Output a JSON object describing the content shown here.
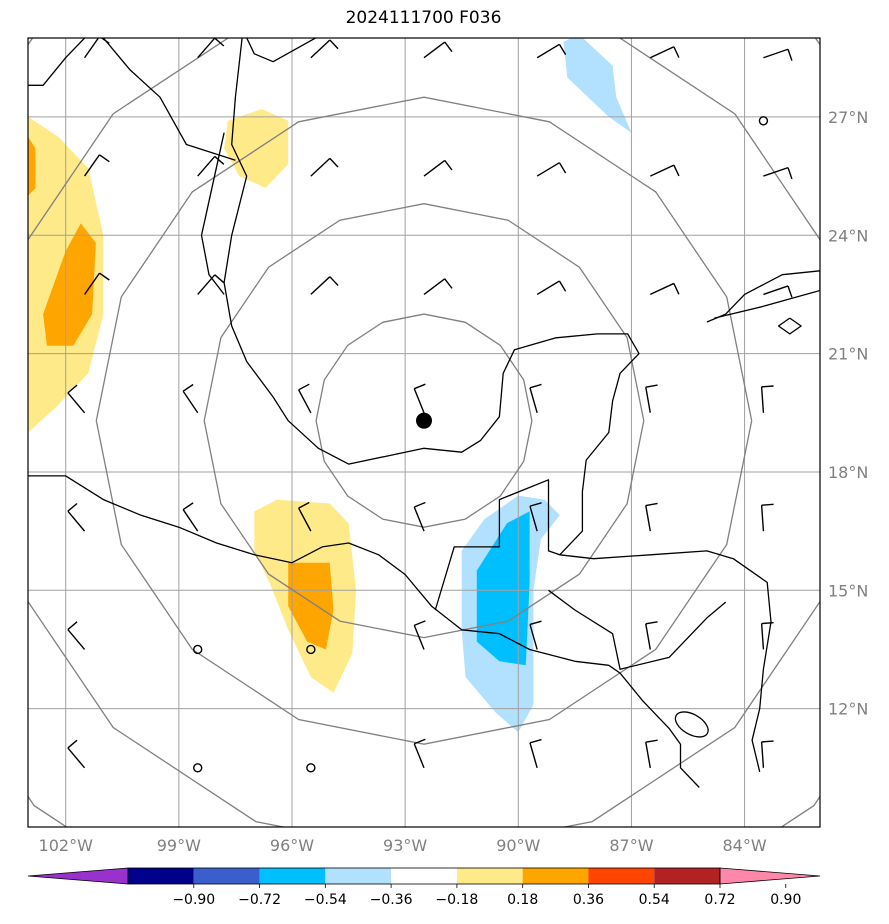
{
  "title": "2024111700 F036",
  "map": {
    "lon_range": [
      -103,
      -82
    ],
    "lat_range": [
      9,
      29
    ],
    "lon_ticks": [
      "102°W",
      "99°W",
      "96°W",
      "93°W",
      "90°W",
      "87°W",
      "84°W"
    ],
    "lat_ticks": [
      "27°N",
      "24°N",
      "21°N",
      "18°N",
      "15°N",
      "12°N"
    ],
    "center_marker": {
      "lon": -92.5,
      "lat": 19.3
    },
    "range_rings_deg": [
      2.7,
      5.5,
      8.2,
      11.0,
      13.8
    ],
    "colors": {
      "coast": "#000000",
      "grid": "#a0a0a0",
      "ring": "#808080",
      "pos1": "#ffea8a",
      "pos2": "#ffa500",
      "neg1": "#b2e0ff",
      "neg2": "#00bfff"
    }
  },
  "colorbar": {
    "labels": [
      "−0.90",
      "−0.72",
      "−0.54",
      "−0.36",
      "−0.18",
      "0.18",
      "0.36",
      "0.54",
      "0.72",
      "0.90"
    ],
    "colors": [
      "#9932cc",
      "#00008b",
      "#3a5fcd",
      "#00bfff",
      "#b2e0ff",
      "#ffffff",
      "#ffea8a",
      "#ffa500",
      "#ff4500",
      "#b22222",
      "#ff88aa"
    ]
  },
  "chart_data": {
    "type": "map",
    "title": "2024111700 F036",
    "field_levels": [
      -0.9,
      -0.72,
      -0.54,
      -0.36,
      -0.18,
      0.18,
      0.36,
      0.54,
      0.72,
      0.9
    ],
    "features": [
      {
        "kind": "positive",
        "level": "0.18-0.36",
        "location": "western Mexico coast ~101.5W 22N"
      },
      {
        "kind": "positive",
        "level": "0.36-0.54",
        "location": "~101.5W 22N core"
      },
      {
        "kind": "positive",
        "level": "0.18-0.36",
        "location": "southern Mexico ~95.5W 15N"
      },
      {
        "kind": "positive",
        "level": "0.36-0.54",
        "location": "~95.5W 15N core"
      },
      {
        "kind": "negative",
        "level": "-0.36 to -0.18",
        "location": "Guatemala/Gulf of Honduras ~90.5W 15N"
      },
      {
        "kind": "negative",
        "level": "-0.54 to -0.36",
        "location": "~90.5W 15N core"
      },
      {
        "kind": "negative",
        "level": "-0.36 to -0.18",
        "location": "Florida panhandle ~88W 28N"
      }
    ]
  }
}
